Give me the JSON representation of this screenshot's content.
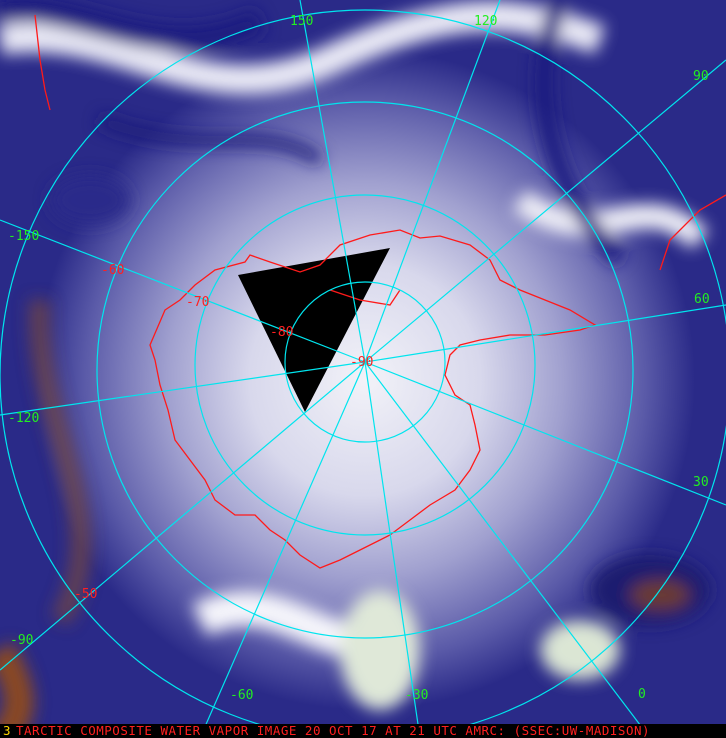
{
  "caption": "TARCTIC COMPOSITE WATER VAPOR IMAGE 20 OCT 17 AT 21 UTC AMRC: (SSEC:UW-MADISON)",
  "frame_mark": "3",
  "colors": {
    "graticule": "#00e5ee",
    "coastline": "#ff1a1a",
    "lon_label": "#22ee22",
    "lat_label": "#ff2020",
    "nodata": "#000000"
  },
  "latitude_labels": [
    "-50",
    "-60",
    "-70",
    "-80",
    "-90"
  ],
  "longitude_labels": [
    "150",
    "120",
    "90",
    "60",
    "30",
    "0",
    "-30",
    "-60",
    "-90",
    "-120",
    "-150"
  ]
}
